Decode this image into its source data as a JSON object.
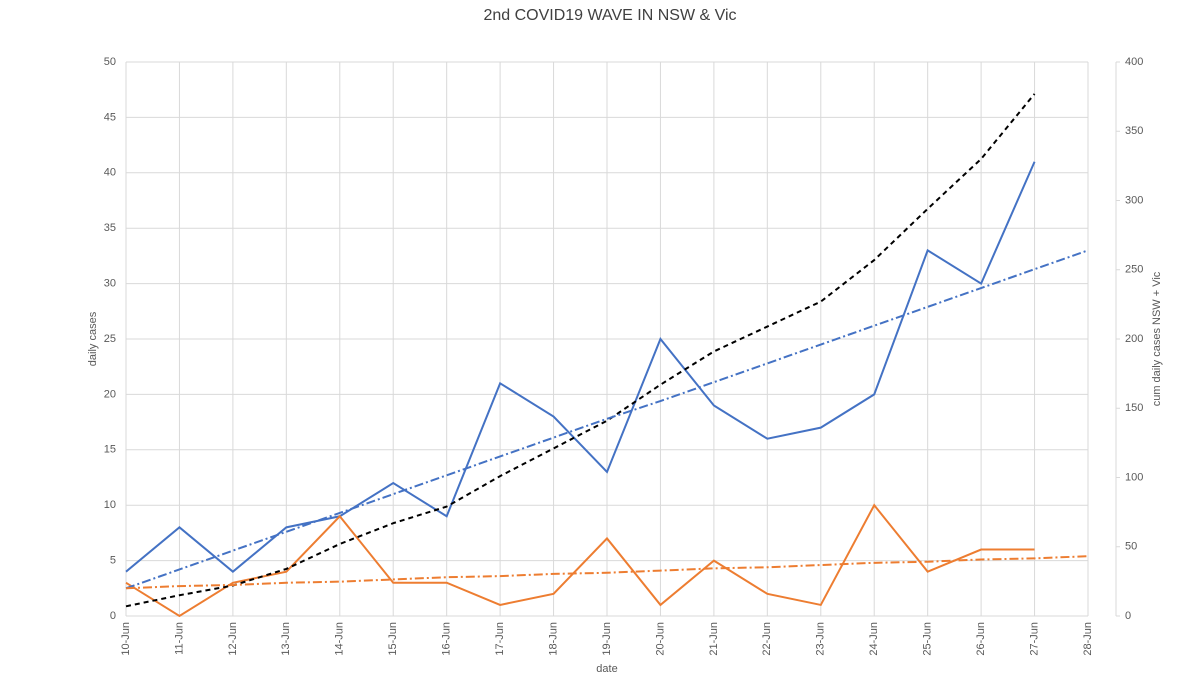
{
  "chart_data": {
    "type": "line",
    "title": "2nd COVID19 WAVE IN NSW & Vic",
    "x_label": "date",
    "y_label": "daily cases",
    "y2_label": "cum daily cases NSW + Vic",
    "categories": [
      "10-Jun",
      "11-Jun",
      "12-Jun",
      "13-Jun",
      "14-Jun",
      "15-Jun",
      "16-Jun",
      "17-Jun",
      "18-Jun",
      "19-Jun",
      "20-Jun",
      "21-Jun",
      "22-Jun",
      "23-Jun",
      "24-Jun",
      "25-Jun",
      "26-Jun",
      "27-Jun",
      "28-Jun"
    ],
    "ylim": [
      0,
      50
    ],
    "yticks": [
      0,
      5,
      10,
      15,
      20,
      25,
      30,
      35,
      40,
      45,
      50
    ],
    "y2lim": [
      0,
      400
    ],
    "y2ticks": [
      0,
      50,
      100,
      150,
      200,
      250,
      300,
      350,
      400
    ],
    "grid": true,
    "series": [
      {
        "color": "#4472c4",
        "dash": "solid",
        "values": [
          4,
          8,
          4,
          8,
          9,
          12,
          9,
          21,
          18,
          13,
          25,
          19,
          16,
          17,
          20,
          33,
          30,
          41,
          null
        ]
      },
      {
        "color": "#ed7d31",
        "dash": "solid",
        "values": [
          3,
          0,
          3,
          4,
          9,
          3,
          3,
          1,
          2,
          7,
          1,
          5,
          2,
          1,
          10,
          4,
          6,
          6,
          null
        ]
      },
      {
        "color": "#000000",
        "dash": "dashed",
        "axis": "y2",
        "values": [
          7,
          15,
          22,
          34,
          52,
          67,
          79,
          101,
          121,
          141,
          167,
          191,
          209,
          227,
          257,
          294,
          330,
          377,
          null
        ]
      },
      {
        "color": "#4472c4",
        "dash": "dashdot",
        "values": [
          2.5,
          4.2,
          5.9,
          7.6,
          9.3,
          11.0,
          12.7,
          14.4,
          16.1,
          17.8,
          19.4,
          21.1,
          22.8,
          24.5,
          26.2,
          27.9,
          29.6,
          31.3,
          33.0
        ]
      },
      {
        "color": "#ed7d31",
        "dash": "dashdot",
        "values": [
          2.5,
          2.7,
          2.8,
          3.0,
          3.1,
          3.3,
          3.5,
          3.6,
          3.8,
          3.9,
          4.1,
          4.3,
          4.4,
          4.6,
          4.8,
          4.9,
          5.1,
          5.2,
          5.4
        ]
      }
    ]
  }
}
